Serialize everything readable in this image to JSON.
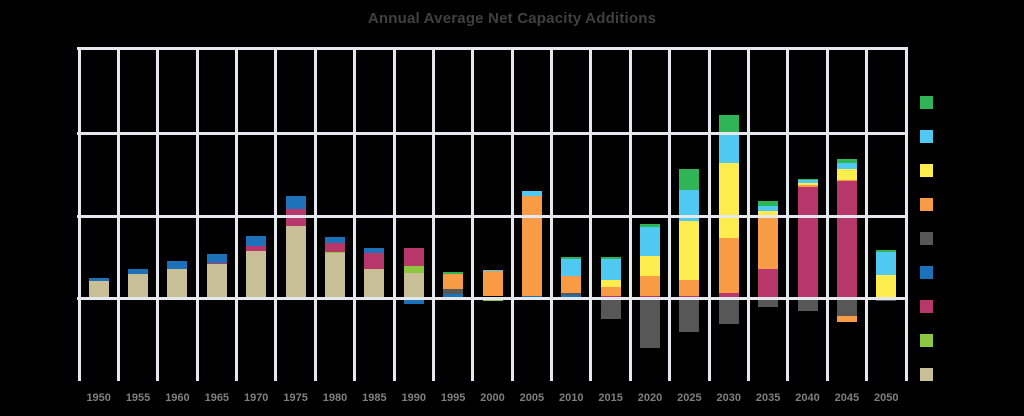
{
  "chart_data": {
    "type": "bar",
    "stacked": true,
    "title": "Annual Average Net Capacity Additions",
    "categories": [
      "1950",
      "1955",
      "1960",
      "1965",
      "1970",
      "1975",
      "1980",
      "1985",
      "1990",
      "1995",
      "2000",
      "2005",
      "2010",
      "2015",
      "2020",
      "2025",
      "2030",
      "2035",
      "2040",
      "2045",
      "2050"
    ],
    "value_axis": {
      "labels_visible": false,
      "gridline_units": [
        0,
        1,
        2,
        3
      ],
      "zero_line_unit": 0
    },
    "grid": "on",
    "legend": {
      "position": "right",
      "labels_visible": false,
      "order": [
        "green",
        "sky",
        "yellow",
        "orange",
        "gray",
        "blue",
        "magenta",
        "lime",
        "tan"
      ]
    },
    "series_colors": {
      "green": "#2FB457",
      "sky": "#4FC8F2",
      "yellow": "#FFEC4D",
      "orange": "#F89B45",
      "gray": "#575757",
      "blue": "#1D71B8",
      "magenta": "#B7376B",
      "lime": "#8DC63F",
      "tan": "#C8BF96"
    },
    "bars": [
      {
        "year": "1950",
        "segments": [
          {
            "color": "tan",
            "value": 0.2
          },
          {
            "color": "blue",
            "value": 0.04
          }
        ]
      },
      {
        "year": "1955",
        "segments": [
          {
            "color": "tan",
            "value": 0.28
          },
          {
            "color": "blue",
            "value": 0.07
          }
        ]
      },
      {
        "year": "1960",
        "segments": [
          {
            "color": "tan",
            "value": 0.34
          },
          {
            "color": "blue",
            "value": 0.1
          }
        ]
      },
      {
        "year": "1965",
        "segments": [
          {
            "color": "tan",
            "value": 0.4
          },
          {
            "color": "magenta",
            "value": 0.02
          },
          {
            "color": "blue",
            "value": 0.1
          }
        ]
      },
      {
        "year": "1970",
        "segments": [
          {
            "color": "tan",
            "value": 0.56
          },
          {
            "color": "magenta",
            "value": 0.06
          },
          {
            "color": "blue",
            "value": 0.12
          }
        ]
      },
      {
        "year": "1975",
        "segments": [
          {
            "color": "tan",
            "value": 0.86
          },
          {
            "color": "magenta",
            "value": 0.2
          },
          {
            "color": "blue",
            "value": 0.15
          }
        ]
      },
      {
        "year": "1980",
        "segments": [
          {
            "color": "tan",
            "value": 0.53
          },
          {
            "color": "lime",
            "value": 0.02
          },
          {
            "color": "magenta",
            "value": 0.1
          },
          {
            "color": "blue",
            "value": 0.08
          }
        ]
      },
      {
        "year": "1985",
        "segments": [
          {
            "color": "tan",
            "value": 0.34
          },
          {
            "color": "magenta",
            "value": 0.19
          },
          {
            "color": "blue",
            "value": 0.06
          }
        ]
      },
      {
        "year": "1990",
        "segments": [
          {
            "color": "tan",
            "value": 0.3
          },
          {
            "color": "lime",
            "value": 0.08
          },
          {
            "color": "magenta",
            "value": 0.22
          },
          {
            "color": "blue",
            "value": -0.07
          }
        ]
      },
      {
        "year": "1995",
        "segments": [
          {
            "color": "blue",
            "value": 0.05
          },
          {
            "color": "gray",
            "value": 0.06
          },
          {
            "color": "orange",
            "value": 0.17
          },
          {
            "color": "green",
            "value": 0.03
          }
        ]
      },
      {
        "year": "2000",
        "segments": [
          {
            "color": "magenta",
            "value": 0.01
          },
          {
            "color": "orange",
            "value": 0.3
          },
          {
            "color": "sky",
            "value": 0.02
          },
          {
            "color": "lime",
            "value": -0.03
          }
        ]
      },
      {
        "year": "2005",
        "segments": [
          {
            "color": "blue",
            "value": 0.02
          },
          {
            "color": "orange",
            "value": 1.19
          },
          {
            "color": "sky",
            "value": 0.06
          },
          {
            "color": "lime",
            "value": -0.02
          }
        ]
      },
      {
        "year": "2010",
        "segments": [
          {
            "color": "blue",
            "value": 0.03
          },
          {
            "color": "gray",
            "value": 0.03
          },
          {
            "color": "orange",
            "value": 0.2
          },
          {
            "color": "sky",
            "value": 0.21
          },
          {
            "color": "green",
            "value": 0.02
          }
        ]
      },
      {
        "year": "2015",
        "segments": [
          {
            "color": "magenta",
            "value": 0.02
          },
          {
            "color": "orange",
            "value": 0.11
          },
          {
            "color": "yellow",
            "value": 0.09
          },
          {
            "color": "sky",
            "value": 0.24
          },
          {
            "color": "green",
            "value": 0.03
          },
          {
            "color": "gray",
            "value": -0.25
          }
        ]
      },
      {
        "year": "2020",
        "segments": [
          {
            "color": "magenta",
            "value": 0.02
          },
          {
            "color": "orange",
            "value": 0.24
          },
          {
            "color": "yellow",
            "value": 0.24
          },
          {
            "color": "sky",
            "value": 0.35
          },
          {
            "color": "green",
            "value": 0.03
          },
          {
            "color": "gray",
            "value": -0.59
          }
        ]
      },
      {
        "year": "2025",
        "segments": [
          {
            "color": "magenta",
            "value": 0.02
          },
          {
            "color": "orange",
            "value": 0.2
          },
          {
            "color": "yellow",
            "value": 0.7
          },
          {
            "color": "sky",
            "value": 0.36
          },
          {
            "color": "green",
            "value": 0.25
          },
          {
            "color": "gray",
            "value": -0.4
          }
        ]
      },
      {
        "year": "2030",
        "segments": [
          {
            "color": "magenta",
            "value": 0.06
          },
          {
            "color": "orange",
            "value": 0.65
          },
          {
            "color": "yellow",
            "value": 0.9
          },
          {
            "color": "sky",
            "value": 0.33
          },
          {
            "color": "green",
            "value": 0.24
          },
          {
            "color": "gray",
            "value": -0.31
          }
        ]
      },
      {
        "year": "2035",
        "segments": [
          {
            "color": "magenta",
            "value": 0.34
          },
          {
            "color": "orange",
            "value": 0.64
          },
          {
            "color": "yellow",
            "value": 0.05
          },
          {
            "color": "sky",
            "value": 0.06
          },
          {
            "color": "green",
            "value": 0.07
          },
          {
            "color": "gray",
            "value": -0.11
          }
        ]
      },
      {
        "year": "2040",
        "segments": [
          {
            "color": "magenta",
            "value": 1.32
          },
          {
            "color": "orange",
            "value": 0.02
          },
          {
            "color": "yellow",
            "value": 0.03
          },
          {
            "color": "sky",
            "value": 0.03
          },
          {
            "color": "green",
            "value": 0.02
          },
          {
            "color": "gray",
            "value": -0.16
          }
        ]
      },
      {
        "year": "2045",
        "segments": [
          {
            "color": "magenta",
            "value": 1.39
          },
          {
            "color": "orange",
            "value": 0.02
          },
          {
            "color": "yellow",
            "value": 0.13
          },
          {
            "color": "sky",
            "value": 0.07
          },
          {
            "color": "green",
            "value": 0.04
          },
          {
            "color": "gray",
            "value": -0.22
          },
          {
            "color": "orange",
            "value": -0.06
          }
        ]
      },
      {
        "year": "2050",
        "segments": [
          {
            "color": "yellow",
            "value": 0.27
          },
          {
            "color": "sky",
            "value": 0.28
          },
          {
            "color": "green",
            "value": 0.02
          },
          {
            "color": "gray",
            "value": -0.03
          }
        ]
      }
    ]
  },
  "style": {
    "background": "#000000",
    "gridline_color": "#E5E8EE",
    "title_color": "#404040",
    "x_label_color": "#7F7F7F"
  }
}
